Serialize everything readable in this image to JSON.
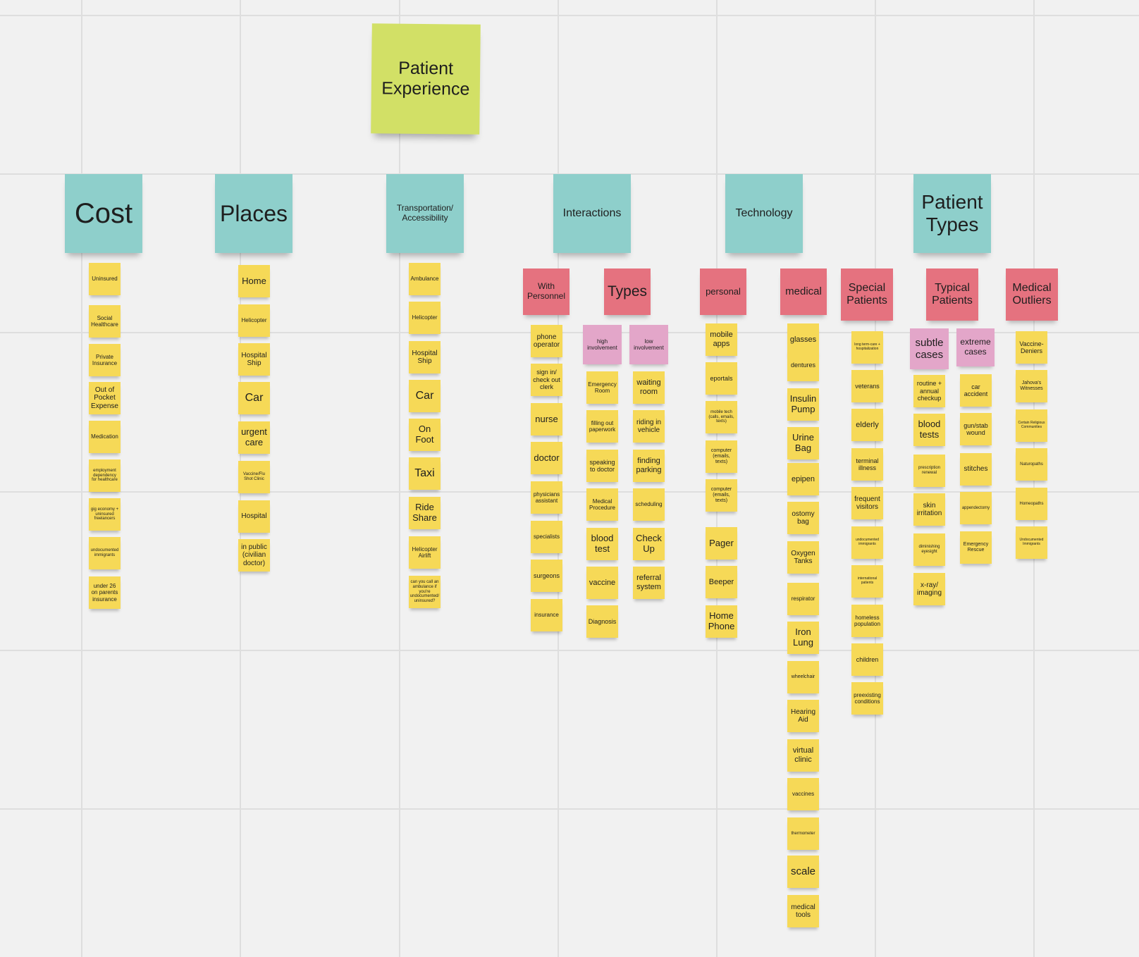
{
  "board": {
    "title_note": "Patient Experience",
    "categories": {
      "cost": "Cost",
      "places": "Places",
      "transportation": "Transportation/ Accessibility",
      "interactions": "Interactions",
      "technology": "Technology",
      "patient_types": "Patient Types"
    },
    "subcategories": {
      "with_personnel": "With Personnel",
      "types": "Types",
      "personal": "personal",
      "medical": "medical",
      "special_patients": "Special Patients",
      "typical_patients": "Typical Patients",
      "medical_outliers": "Medical Outliers",
      "high_involvement": "high involvement",
      "low_involvement": "low involvement",
      "subtle_cases": "subtle cases",
      "extreme_cases": "extreme cases"
    },
    "cost_notes": [
      "Uninsured",
      "Social Healthcare",
      "Private Insurance",
      "Out of Pocket Expense",
      "Medication",
      "employment dependency for healthcare",
      "gig economy + uninsured freelancers",
      "undocumented immigrants",
      "under 26 on parents insurance"
    ],
    "places_notes": [
      "Home",
      "Helicopter",
      "Hospital Ship",
      "Car",
      "urgent care",
      "Vaccine/Flu Shot Clinic",
      "Hospital",
      "in public (civilian doctor)"
    ],
    "transport_notes": [
      "Ambulance",
      "Helicopter",
      "Hospital Ship",
      "Car",
      "On Foot",
      "Taxi",
      "Ride Share",
      "Helicopter Airlift",
      "can you call an ambulance if you're undocumented/ uninsured?"
    ],
    "personnel_notes": [
      "phone operator",
      "sign in/ check out clerk",
      "nurse",
      "doctor",
      "physicians assistant",
      "specialists",
      "surgeons",
      "insurance"
    ],
    "high_involvement_notes": [
      "Emergency Room",
      "filling out paperwork",
      "speaking to doctor",
      "Medical Procedure",
      "blood test",
      "vaccine",
      "Diagnosis"
    ],
    "low_involvement_notes": [
      "waiting room",
      "riding in vehicle",
      "finding parking",
      "scheduling",
      "Check Up",
      "referral system"
    ],
    "personal_tech_notes": [
      "mobile apps",
      "eportals",
      "mobile tech (calls, emails, texts)",
      "computer (emails, texts)",
      "computer (emails, texts)",
      "Pager",
      "Beeper",
      "Home Phone"
    ],
    "medical_tech_notes": [
      "glasses",
      "dentures",
      "Insulin Pump",
      "Urine Bag",
      "epipen",
      "ostomy bag",
      "Oxygen Tanks",
      "respirator",
      "Iron Lung",
      "wheelchair",
      "Hearing Aid",
      "virtual clinic",
      "vaccines",
      "thermometer",
      "scale",
      "medical tools"
    ],
    "special_patient_notes": [
      "long term-care + hospitalization",
      "veterans",
      "elderly",
      "terminal illness",
      "frequent visitors",
      "undocumented immigrants",
      "international patients",
      "homeless population",
      "children",
      "preexisting conditions"
    ],
    "subtle_case_notes": [
      "routine + annual checkup",
      "blood tests",
      "prescription renewal",
      "skin irritation",
      "diminishing eyesight",
      "x-ray/ imaging"
    ],
    "extreme_case_notes": [
      "car accident",
      "gun/stab wound",
      "stitches",
      "appendectomy",
      "Emergency Rescue"
    ],
    "outlier_notes": [
      "Vaccine-Deniers",
      "Jahova's Witnesses",
      "Certain Religious Communities",
      "Naturopaths",
      "Homeopaths",
      "Undocumented Immigrants"
    ]
  },
  "colors": {
    "canvas": "#f1f1f1",
    "grid": "#dedede",
    "title_note": "#d2e066",
    "category_note": "#8ecfcb",
    "subcategory_note": "#e5727f",
    "sub_subcategory_note": "#e3a6c9",
    "item_note": "#f6d957"
  }
}
